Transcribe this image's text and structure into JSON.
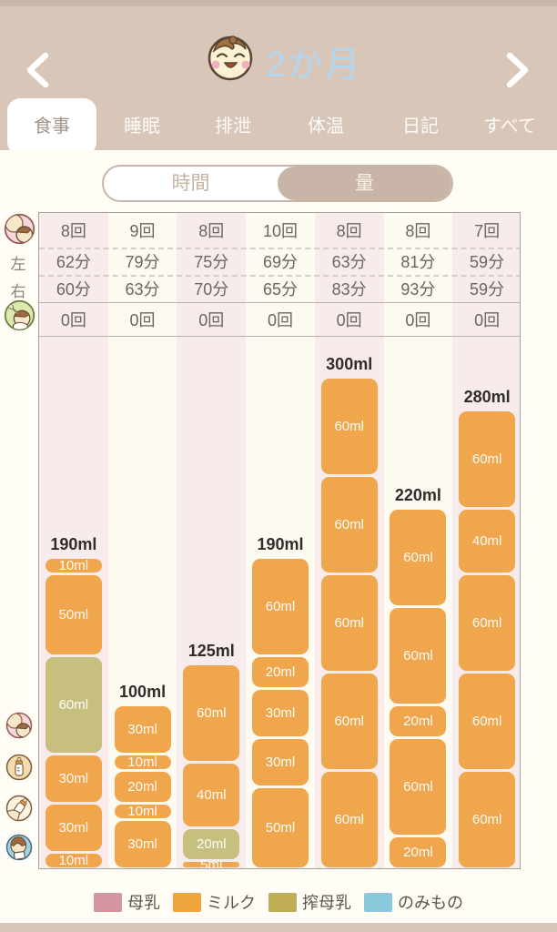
{
  "header": {
    "title": "2か月"
  },
  "tabs": {
    "items": [
      "食事",
      "睡眠",
      "排泄",
      "体温",
      "日記",
      "すべて"
    ],
    "active": "食事"
  },
  "toggle": {
    "options": [
      "時間",
      "量"
    ],
    "selected": "量"
  },
  "table": {
    "row_labels": {
      "left": "左",
      "right": "右"
    },
    "breast_count": [
      "8回",
      "9回",
      "8回",
      "10回",
      "8回",
      "8回",
      "7回"
    ],
    "left_minutes": [
      "62分",
      "79分",
      "75分",
      "69分",
      "63分",
      "81分",
      "59分"
    ],
    "right_minutes": [
      "60分",
      "63分",
      "70分",
      "65分",
      "83分",
      "93分",
      "59分"
    ],
    "food_count": [
      "0回",
      "0回",
      "0回",
      "0回",
      "0回",
      "0回",
      "0回"
    ]
  },
  "chart_data": {
    "type": "bar",
    "stacked": true,
    "unit": "ml",
    "categories": [
      "day1",
      "day2",
      "day3",
      "day4",
      "day5",
      "day6",
      "day7"
    ],
    "totals": [
      190,
      100,
      125,
      190,
      300,
      220,
      280
    ],
    "columns": [
      {
        "total_label": "190ml",
        "total": 190,
        "segments": [
          {
            "value": 10,
            "label": "10ml",
            "kind": "milk"
          },
          {
            "value": 50,
            "label": "50ml",
            "kind": "milk"
          },
          {
            "value": 60,
            "label": "60ml",
            "kind": "expressed"
          },
          {
            "value": 30,
            "label": "30ml",
            "kind": "milk"
          },
          {
            "value": 30,
            "label": "30ml",
            "kind": "milk"
          },
          {
            "value": 10,
            "label": "10ml",
            "kind": "milk"
          }
        ]
      },
      {
        "total_label": "100ml",
        "total": 100,
        "segments": [
          {
            "value": 30,
            "label": "30ml",
            "kind": "milk"
          },
          {
            "value": 10,
            "label": "10ml",
            "kind": "milk"
          },
          {
            "value": 20,
            "label": "20ml",
            "kind": "milk"
          },
          {
            "value": 10,
            "label": "10ml",
            "kind": "milk"
          },
          {
            "value": 30,
            "label": "30ml",
            "kind": "milk"
          }
        ]
      },
      {
        "total_label": "125ml",
        "total": 125,
        "segments": [
          {
            "value": 60,
            "label": "60ml",
            "kind": "milk"
          },
          {
            "value": 40,
            "label": "40ml",
            "kind": "milk"
          },
          {
            "value": 20,
            "label": "20ml",
            "kind": "expressed"
          },
          {
            "value": 5,
            "label": "5ml",
            "kind": "milk"
          }
        ]
      },
      {
        "total_label": "190ml",
        "total": 190,
        "segments": [
          {
            "value": 60,
            "label": "60ml",
            "kind": "milk"
          },
          {
            "value": 20,
            "label": "20ml",
            "kind": "milk"
          },
          {
            "value": 30,
            "label": "30ml",
            "kind": "milk"
          },
          {
            "value": 30,
            "label": "30ml",
            "kind": "milk"
          },
          {
            "value": 50,
            "label": "50ml",
            "kind": "milk"
          }
        ]
      },
      {
        "total_label": "300ml",
        "total": 300,
        "segments": [
          {
            "value": 60,
            "label": "60ml",
            "kind": "milk"
          },
          {
            "value": 60,
            "label": "60ml",
            "kind": "milk"
          },
          {
            "value": 60,
            "label": "60ml",
            "kind": "milk"
          },
          {
            "value": 60,
            "label": "60ml",
            "kind": "milk"
          },
          {
            "value": 60,
            "label": "60ml",
            "kind": "milk"
          }
        ]
      },
      {
        "total_label": "220ml",
        "total": 220,
        "segments": [
          {
            "value": 60,
            "label": "60ml",
            "kind": "milk"
          },
          {
            "value": 60,
            "label": "60ml",
            "kind": "milk"
          },
          {
            "value": 20,
            "label": "20ml",
            "kind": "milk"
          },
          {
            "value": 60,
            "label": "60ml",
            "kind": "milk"
          },
          {
            "value": 20,
            "label": "20ml",
            "kind": "milk"
          }
        ]
      },
      {
        "total_label": "280ml",
        "total": 280,
        "segments": [
          {
            "value": 60,
            "label": "60ml",
            "kind": "milk"
          },
          {
            "value": 40,
            "label": "40ml",
            "kind": "milk"
          },
          {
            "value": 60,
            "label": "60ml",
            "kind": "milk"
          },
          {
            "value": 60,
            "label": "60ml",
            "kind": "milk"
          },
          {
            "value": 60,
            "label": "60ml",
            "kind": "milk"
          }
        ]
      }
    ],
    "kind_colors": {
      "breast": "#d494a2",
      "milk": "#f0a64c",
      "expressed": "#c7bf7d",
      "drink": "#8cc9dd"
    },
    "column_bg": {
      "odd": "#f8ebec",
      "even": "#fdfaf2"
    }
  },
  "legend": {
    "items": [
      {
        "label": "母乳",
        "color": "#d494a2"
      },
      {
        "label": "ミルク",
        "color": "#f0a43c"
      },
      {
        "label": "搾母乳",
        "color": "#bfae55"
      },
      {
        "label": "のみもの",
        "color": "#8cc9dd"
      }
    ]
  }
}
